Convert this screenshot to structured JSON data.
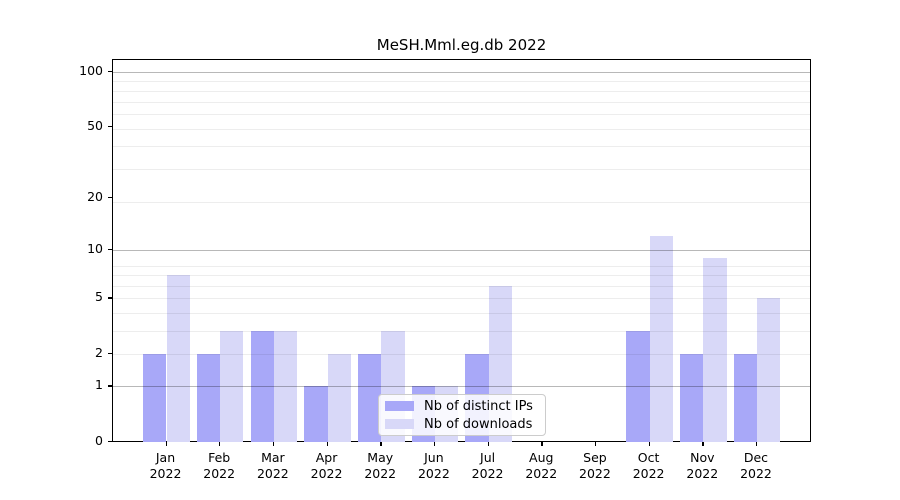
{
  "chart_data": {
    "type": "bar",
    "title": "MeSH.Mml.eg.db 2022",
    "categories": [
      "Jan 2022",
      "Feb 2022",
      "Mar 2022",
      "Apr 2022",
      "May 2022",
      "Jun 2022",
      "Jul 2022",
      "Aug 2022",
      "Sep 2022",
      "Oct 2022",
      "Nov 2022",
      "Dec 2022"
    ],
    "series": [
      {
        "name": "Nb of distinct IPs",
        "values": [
          2,
          2,
          3,
          1,
          2,
          1,
          2,
          0,
          0,
          3,
          2,
          2
        ],
        "color": "#a8a8f8"
      },
      {
        "name": "Nb of downloads",
        "values": [
          7,
          3,
          3,
          2,
          3,
          1,
          6,
          0,
          0,
          12,
          9,
          5
        ],
        "color": "#d8d8f8"
      }
    ],
    "xlabel": "",
    "ylabel": "",
    "yscale": "log1p",
    "ytick_values": [
      0,
      1,
      2,
      5,
      10,
      20,
      50,
      100
    ],
    "ytick_labels": [
      "0",
      "1",
      "2",
      "5",
      "10",
      "20",
      "50",
      "100"
    ],
    "major_gridline_values": [
      1,
      10,
      100
    ],
    "minor_gridline_values": [
      2,
      3,
      4,
      5,
      6,
      7,
      8,
      19,
      29,
      39,
      49,
      59,
      69,
      79,
      89
    ],
    "ylim": [
      0,
      118
    ],
    "grid": "on",
    "legend_position": "lower-center-inside"
  },
  "legend": {
    "items": [
      {
        "label": "Nb of distinct IPs",
        "color": "#a8a8f8"
      },
      {
        "label": "Nb of downloads",
        "color": "#d8d8f8"
      }
    ]
  },
  "colors": {
    "bar_ips": "#a8a8f8",
    "bar_downloads": "#d8d8f8",
    "grid_major": "rgba(0,0,0,0.28)",
    "grid_minor": "rgba(0,0,0,0.07)",
    "spine": "#000000",
    "legend_border": "#cccccc",
    "background": "#ffffff"
  }
}
